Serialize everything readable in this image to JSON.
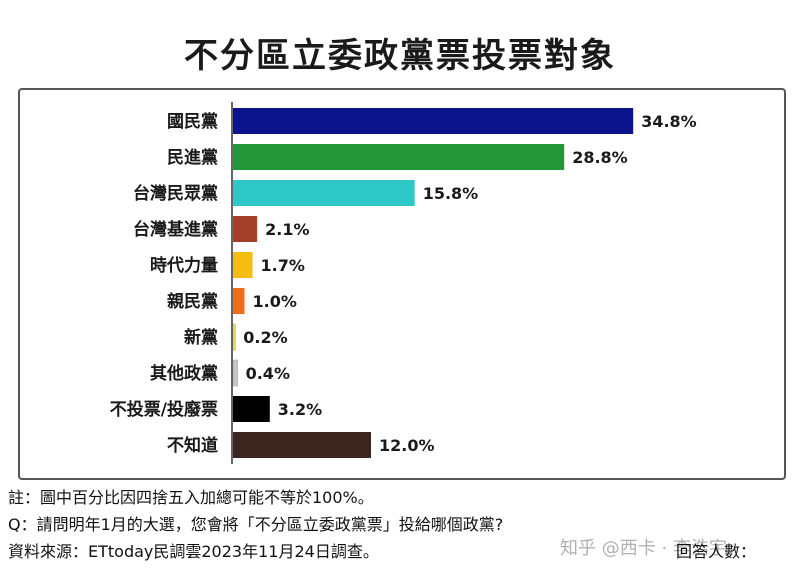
{
  "title": "不分區立委政黨票投票對象",
  "chart_data": {
    "type": "bar",
    "orientation": "horizontal",
    "categories": [
      "國民黨",
      "民進黨",
      "台灣民眾黨",
      "台灣基進黨",
      "時代力量",
      "親民黨",
      "新黨",
      "其他政黨",
      "不投票/投廢票",
      "不知道"
    ],
    "values": [
      34.8,
      28.8,
      15.8,
      2.1,
      1.7,
      1.0,
      0.2,
      0.4,
      3.2,
      12.0
    ],
    "data_labels": [
      "34.8%",
      "28.8%",
      "15.8%",
      "2.1%",
      "1.7%",
      "1.0%",
      "0.2%",
      "0.4%",
      "3.2%",
      "12.0%"
    ],
    "colors": [
      "#0b148c",
      "#23963a",
      "#2ec8c8",
      "#a3402a",
      "#f4bd10",
      "#f26a1b",
      "#f0e050",
      "#c8c8c8",
      "#000000",
      "#3b2620"
    ],
    "xlim": [
      0,
      40
    ],
    "grid": false,
    "legend": "none"
  },
  "footer": {
    "note": "註：圖中百分比因四捨五入加總可能不等於100%。",
    "question": "Q：請問明年1月的大選，您會將「不分區立委政黨票」投給哪個政黨?",
    "source": "資料來源：ETtoday民調雲2023年11月24日調查。",
    "respondents": "回答人數："
  },
  "watermark": "知乎 @西卡 · 李浩宇"
}
